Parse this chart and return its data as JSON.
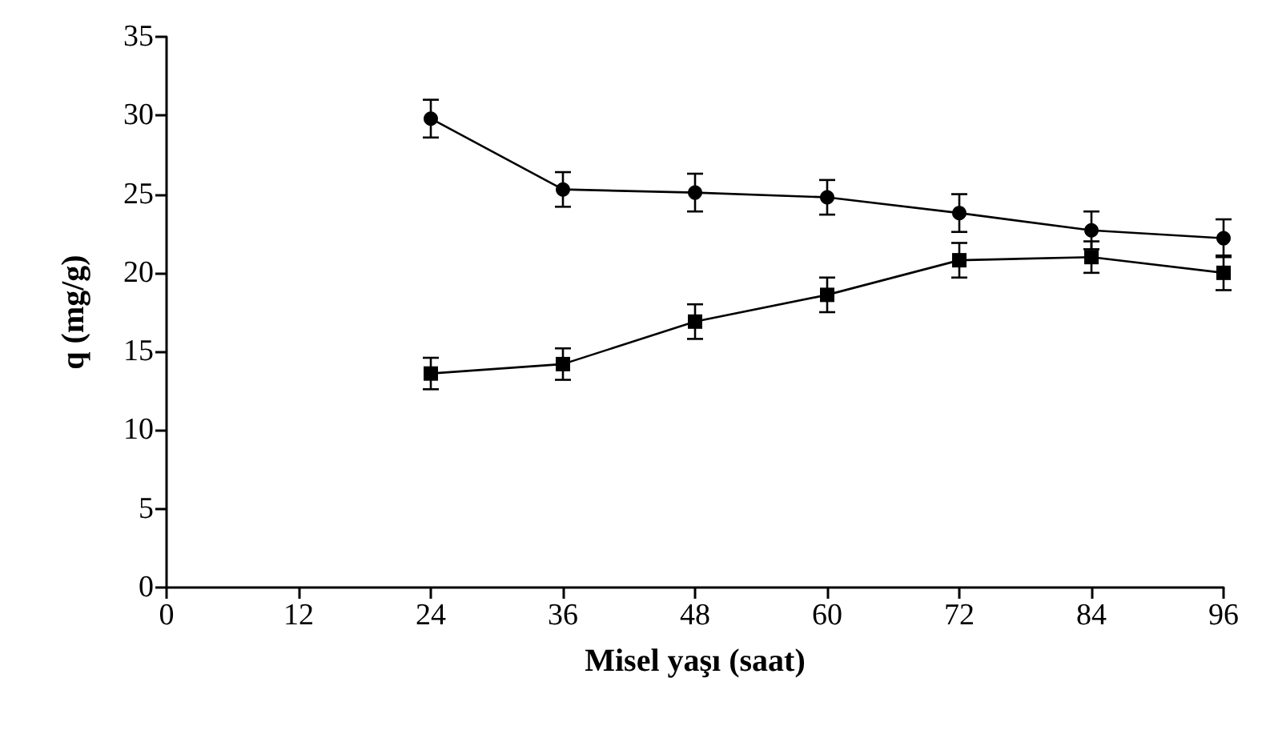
{
  "chart_data": {
    "type": "line",
    "xlabel": "Misel yaşı (saat)",
    "ylabel": "q (mg/g)",
    "x": [
      24,
      36,
      48,
      60,
      72,
      84,
      96
    ],
    "series": [
      {
        "color": "#000000",
        "marker": "square",
        "values": [
          13.6,
          14.2,
          16.9,
          18.6,
          20.8,
          21.0,
          20.0
        ],
        "errors": [
          1.0,
          1.0,
          1.1,
          1.1,
          1.1,
          1.0,
          1.1
        ]
      },
      {
        "color": "#000000",
        "marker": "circle",
        "values": [
          29.8,
          25.3,
          25.1,
          24.8,
          23.8,
          22.7,
          22.2
        ],
        "errors": [
          1.2,
          1.1,
          1.2,
          1.1,
          1.2,
          1.2,
          1.2
        ]
      }
    ],
    "xlim": [
      0,
      96
    ],
    "xticks": [
      0,
      12,
      24,
      36,
      48,
      60,
      72,
      84,
      96
    ],
    "ylim": [
      0,
      35
    ],
    "yticks": [
      0,
      5,
      10,
      15,
      20,
      25,
      30,
      35
    ],
    "grid": false,
    "line_style": "solid"
  }
}
